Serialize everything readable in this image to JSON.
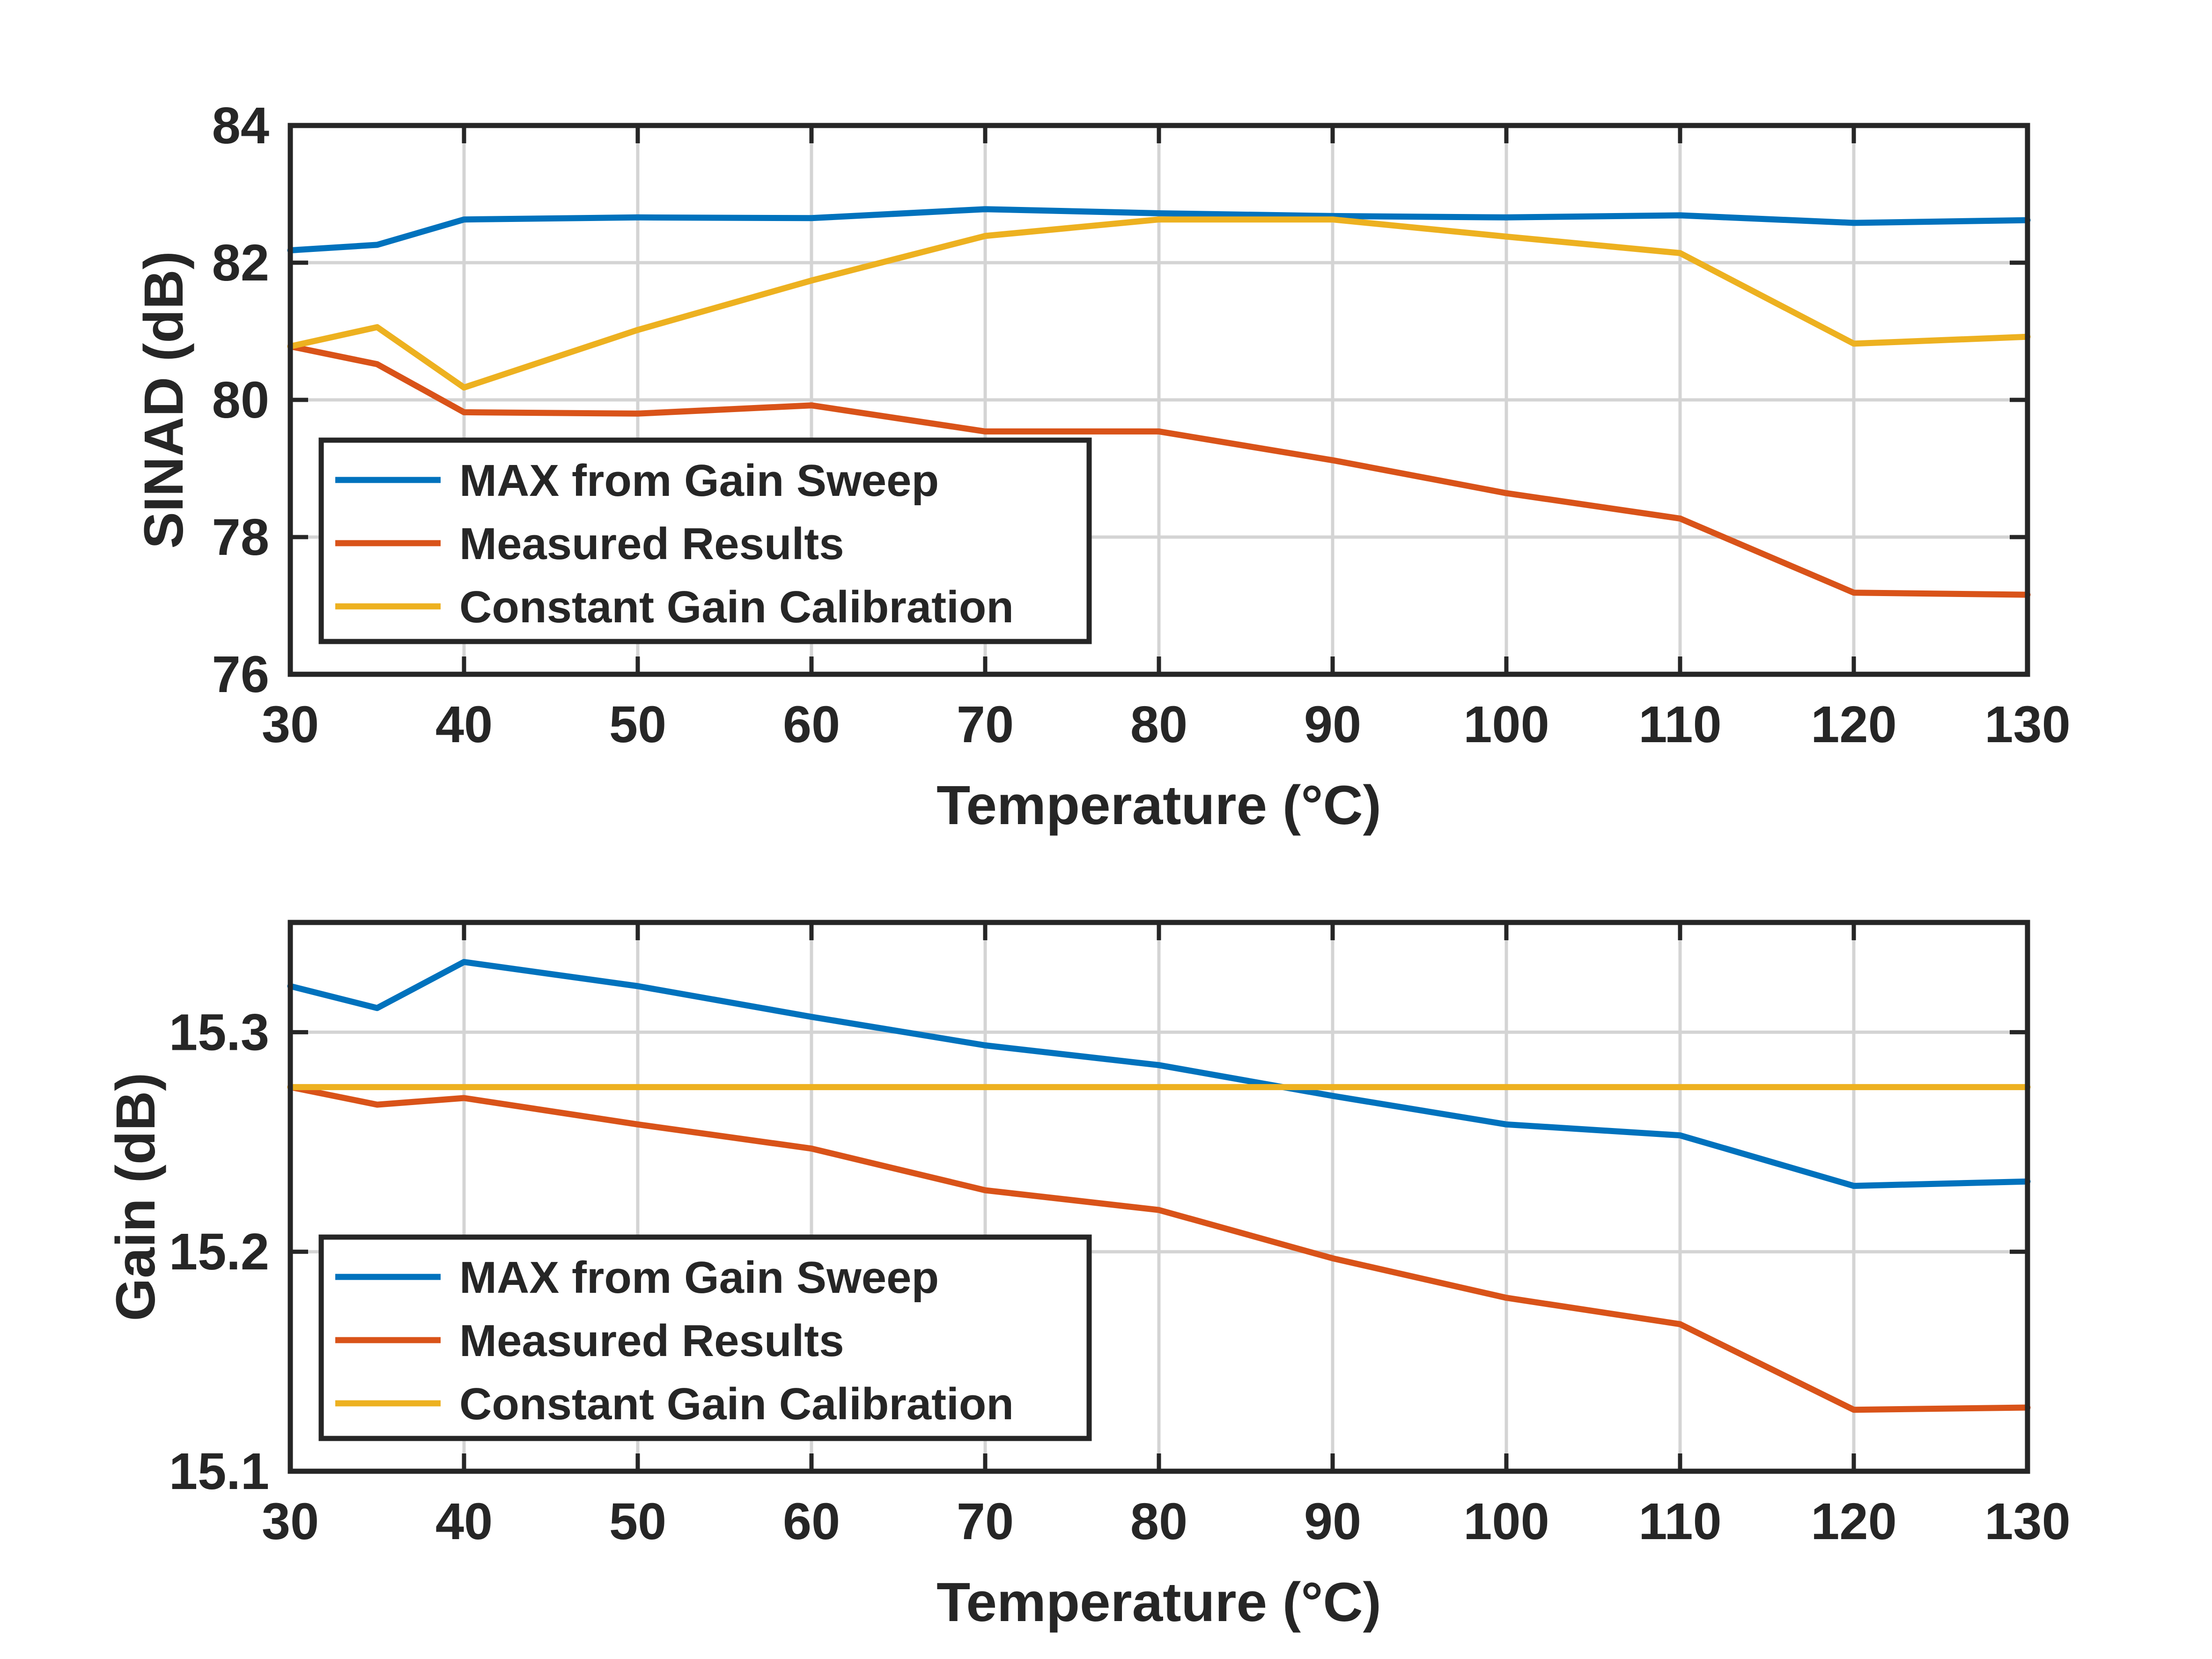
{
  "chart_data": [
    {
      "type": "line",
      "xlabel": "Temperature (°C)",
      "ylabel": "SINAD (dB)",
      "xlim": [
        30,
        130
      ],
      "ylim": [
        76,
        84
      ],
      "xticks": [
        "30",
        "40",
        "50",
        "60",
        "70",
        "80",
        "90",
        "100",
        "110",
        "120",
        "130"
      ],
      "yticks": [
        "76",
        "78",
        "80",
        "82",
        "84"
      ],
      "grid": true,
      "legend_position": "bottom-left",
      "x": [
        30,
        35,
        40,
        50,
        60,
        70,
        80,
        90,
        100,
        110,
        120,
        130
      ],
      "series": [
        {
          "name": "MAX from Gain Sweep",
          "color": "#0072BD",
          "values": [
            82.18,
            82.26,
            82.63,
            82.66,
            82.65,
            82.78,
            82.72,
            82.68,
            82.66,
            82.69,
            82.58,
            82.62
          ]
        },
        {
          "name": "Measured Results",
          "color": "#D95319",
          "values": [
            80.78,
            80.52,
            79.82,
            79.8,
            79.92,
            79.54,
            79.54,
            79.12,
            78.64,
            78.27,
            77.19,
            77.16
          ]
        },
        {
          "name": "Constant Gain Calibration",
          "color": "#EDB120",
          "values": [
            80.78,
            81.06,
            80.18,
            81.02,
            81.74,
            82.39,
            82.63,
            82.63,
            82.38,
            82.14,
            80.82,
            80.92
          ]
        }
      ]
    },
    {
      "type": "line",
      "xlabel": "Temperature (°C)",
      "ylabel": "Gain (dB)",
      "xlim": [
        30,
        130
      ],
      "ylim": [
        15.1,
        15.35
      ],
      "xticks": [
        "30",
        "40",
        "50",
        "60",
        "70",
        "80",
        "90",
        "100",
        "110",
        "120",
        "130"
      ],
      "yticks": [
        "15.1",
        "15.2",
        "15.3"
      ],
      "grid": true,
      "legend_position": "bottom-left",
      "x": [
        30,
        35,
        40,
        50,
        60,
        70,
        80,
        90,
        100,
        110,
        120,
        130
      ],
      "series": [
        {
          "name": "MAX from Gain Sweep",
          "color": "#0072BD",
          "values": [
            15.321,
            15.311,
            15.332,
            15.321,
            15.307,
            15.294,
            15.285,
            15.271,
            15.258,
            15.253,
            15.23,
            15.232
          ]
        },
        {
          "name": "Measured Results",
          "color": "#D95319",
          "values": [
            15.275,
            15.267,
            15.27,
            15.258,
            15.247,
            15.228,
            15.219,
            15.197,
            15.179,
            15.167,
            15.128,
            15.129
          ]
        },
        {
          "name": "Constant Gain Calibration",
          "color": "#EDB120",
          "values": [
            15.275,
            15.275,
            15.275,
            15.275,
            15.275,
            15.275,
            15.275,
            15.275,
            15.275,
            15.275,
            15.275,
            15.275
          ]
        }
      ]
    }
  ]
}
